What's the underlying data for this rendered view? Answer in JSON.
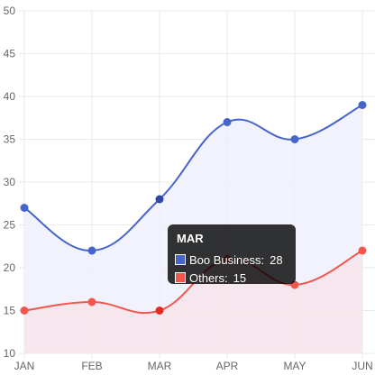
{
  "chart_data": {
    "type": "line",
    "categories": [
      "JAN",
      "FEB",
      "MAR",
      "APR",
      "MAY",
      "JUN"
    ],
    "ylim": [
      10,
      50
    ],
    "yticks": [
      10,
      15,
      20,
      25,
      30,
      35,
      40,
      45,
      50
    ],
    "grid": true,
    "series": [
      {
        "name": "Boo Business",
        "values": [
          27,
          22,
          28,
          37,
          35,
          39
        ],
        "color": "#4665cb",
        "fill": "#eef0fb"
      },
      {
        "name": "Others",
        "values": [
          15,
          16,
          15,
          21,
          18,
          22
        ],
        "color": "#f2574f",
        "fill": "#f7e4ea"
      }
    ],
    "tooltip": {
      "title": "MAR",
      "rows": [
        {
          "label": "Boo Business:",
          "value": "28",
          "color": "#4665cb"
        },
        {
          "label": "Others:",
          "value": "15",
          "color": "#f2574f"
        }
      ]
    }
  }
}
